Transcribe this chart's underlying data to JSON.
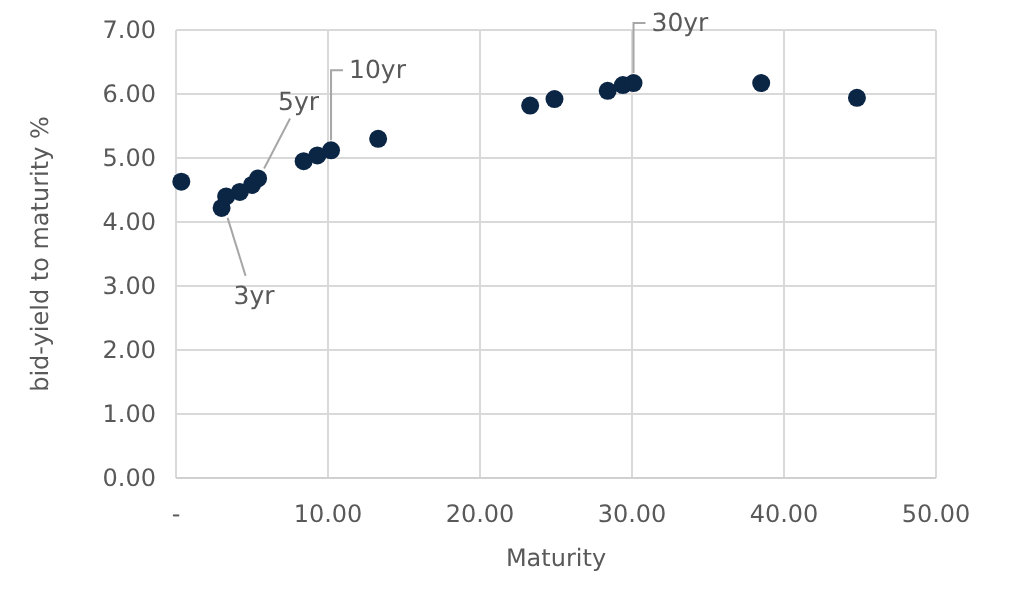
{
  "chart_data": {
    "type": "scatter",
    "xlabel": "Maturity",
    "ylabel": "bid-yield to maturity %",
    "x": [
      0.35,
      3.0,
      3.3,
      4.2,
      5.0,
      5.4,
      8.4,
      9.3,
      10.2,
      13.3,
      23.3,
      24.9,
      28.4,
      29.4,
      30.1,
      38.5,
      44.8
    ],
    "values": [
      4.63,
      4.22,
      4.4,
      4.47,
      4.58,
      4.68,
      4.95,
      5.04,
      5.12,
      5.3,
      5.82,
      5.92,
      6.05,
      6.14,
      6.17,
      6.17,
      5.94
    ],
    "color": "#0b2545",
    "marker": "circle",
    "xlim": [
      0,
      50
    ],
    "xticks": [
      {
        "value": 0,
        "label": "-"
      },
      {
        "value": 10,
        "label": "10.00"
      },
      {
        "value": 20,
        "label": "20.00"
      },
      {
        "value": 30,
        "label": "30.00"
      },
      {
        "value": 40,
        "label": "40.00"
      },
      {
        "value": 50,
        "label": "50.00"
      }
    ],
    "ylim": [
      0,
      7
    ],
    "yticks": [
      {
        "value": 0,
        "label": "0.00"
      },
      {
        "value": 1,
        "label": "1.00"
      },
      {
        "value": 2,
        "label": "2.00"
      },
      {
        "value": 3,
        "label": "3.00"
      },
      {
        "value": 4,
        "label": "4.00"
      },
      {
        "value": 5,
        "label": "5.00"
      },
      {
        "value": 6,
        "label": "6.00"
      },
      {
        "value": 7,
        "label": "7.00"
      }
    ],
    "grid": true,
    "annotations": [
      {
        "text": "3yr",
        "x": 3.0,
        "y": 4.22
      },
      {
        "text": "5yr",
        "x": 5.4,
        "y": 4.68
      },
      {
        "text": "10yr",
        "x": 10.2,
        "y": 5.12
      },
      {
        "text": "30yr",
        "x": 30.1,
        "y": 6.17
      }
    ]
  }
}
